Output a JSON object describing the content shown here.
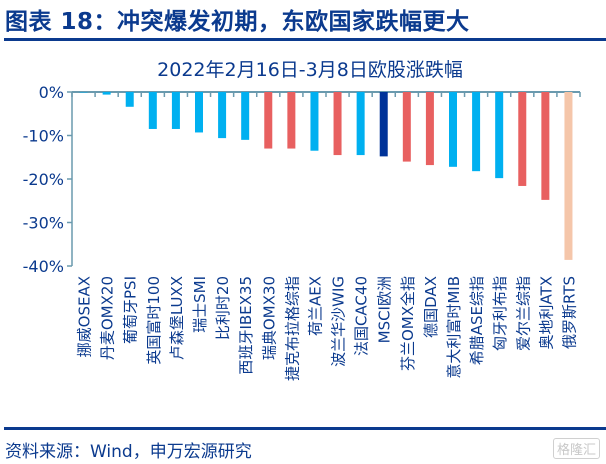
{
  "header": {
    "title": "图表 18：冲突爆发初期，东欧国家跌幅更大"
  },
  "footer": {
    "source": "资料来源：Wind，申万宏源研究",
    "watermark": "格隆汇"
  },
  "colors": {
    "blue": "#00B0F0",
    "red": "#E86060",
    "navy": "#003399",
    "peach": "#F5C6AA",
    "text": "#0B3A8E",
    "axis": "#6A9AAE"
  },
  "chart_data": {
    "type": "bar",
    "title": "2022年2月16日-3月8日欧股涨跌幅",
    "xlabel": "",
    "ylabel": "",
    "ylim": [
      -40,
      0
    ],
    "yticks": [
      0,
      -10,
      -20,
      -30,
      -40
    ],
    "ytick_labels": [
      "0%",
      "-10%",
      "-20%",
      "-30%",
      "-40%"
    ],
    "categories": [
      "挪威OSEAX",
      "丹麦OMX20",
      "葡萄牙PSI",
      "英国富时100",
      "卢森堡LUXX",
      "瑞士SMI",
      "比利时20",
      "西班牙IBEX35",
      "瑞典OMX30",
      "捷克布拉格综指",
      "荷兰AEX",
      "波兰华沙WIG",
      "法国CAC40",
      "MSCI欧洲",
      "芬兰OMX全指",
      "德国DAX",
      "意大利富时MIB",
      "希腊ASE综指",
      "匈牙利布指",
      "爱尔兰综指",
      "奥地利ATX",
      "俄罗斯RTS"
    ],
    "values": [
      -0.1,
      -0.6,
      -3.4,
      -8.5,
      -8.5,
      -9.3,
      -10.6,
      -11.0,
      -13.0,
      -13.0,
      -13.5,
      -14.5,
      -14.5,
      -14.8,
      -16.0,
      -16.8,
      -17.2,
      -18.2,
      -19.8,
      -21.6,
      -24.8,
      -38.6
    ],
    "bar_colors": [
      "blue",
      "blue",
      "blue",
      "blue",
      "blue",
      "blue",
      "blue",
      "blue",
      "red",
      "red",
      "blue",
      "red",
      "blue",
      "navy",
      "red",
      "red",
      "blue",
      "blue",
      "blue",
      "red",
      "red",
      "peach"
    ],
    "grid": false,
    "legend": "none"
  }
}
